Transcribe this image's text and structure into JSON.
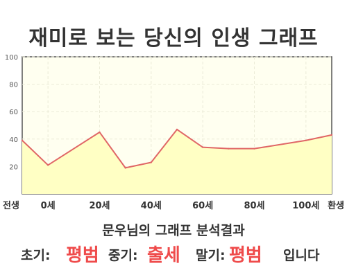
{
  "title": "재미로 보는 당신의 인생 그래프",
  "chart_data": {
    "type": "area",
    "x_tick_labels": [
      "전생",
      "0세",
      "20세",
      "40세",
      "60세",
      "80세",
      "100세",
      "환생"
    ],
    "y_ticks": [
      100,
      80,
      60,
      40,
      20
    ],
    "ylim": [
      0,
      100
    ],
    "grid": true,
    "series": [
      {
        "x": [
          "전생",
          "0세",
          "20세",
          "30세",
          "40세",
          "50세",
          "60세",
          "70세",
          "80세",
          "100세",
          "환생"
        ],
        "values": [
          39,
          21,
          45,
          19,
          23,
          47,
          34,
          33,
          33,
          39,
          43
        ]
      }
    ],
    "colors": {
      "line": "#e06666",
      "fill": "#ffffc4",
      "plot_bg": "#fffff0",
      "grid": "#ececd8"
    }
  },
  "result": {
    "heading": "문우님의 그래프 분석결과",
    "early_label": "초기:",
    "early_value": "평범",
    "mid_label": "중기:",
    "mid_value": "출세",
    "late_label": "말기:",
    "late_value": "평범",
    "ending": "입니다"
  }
}
